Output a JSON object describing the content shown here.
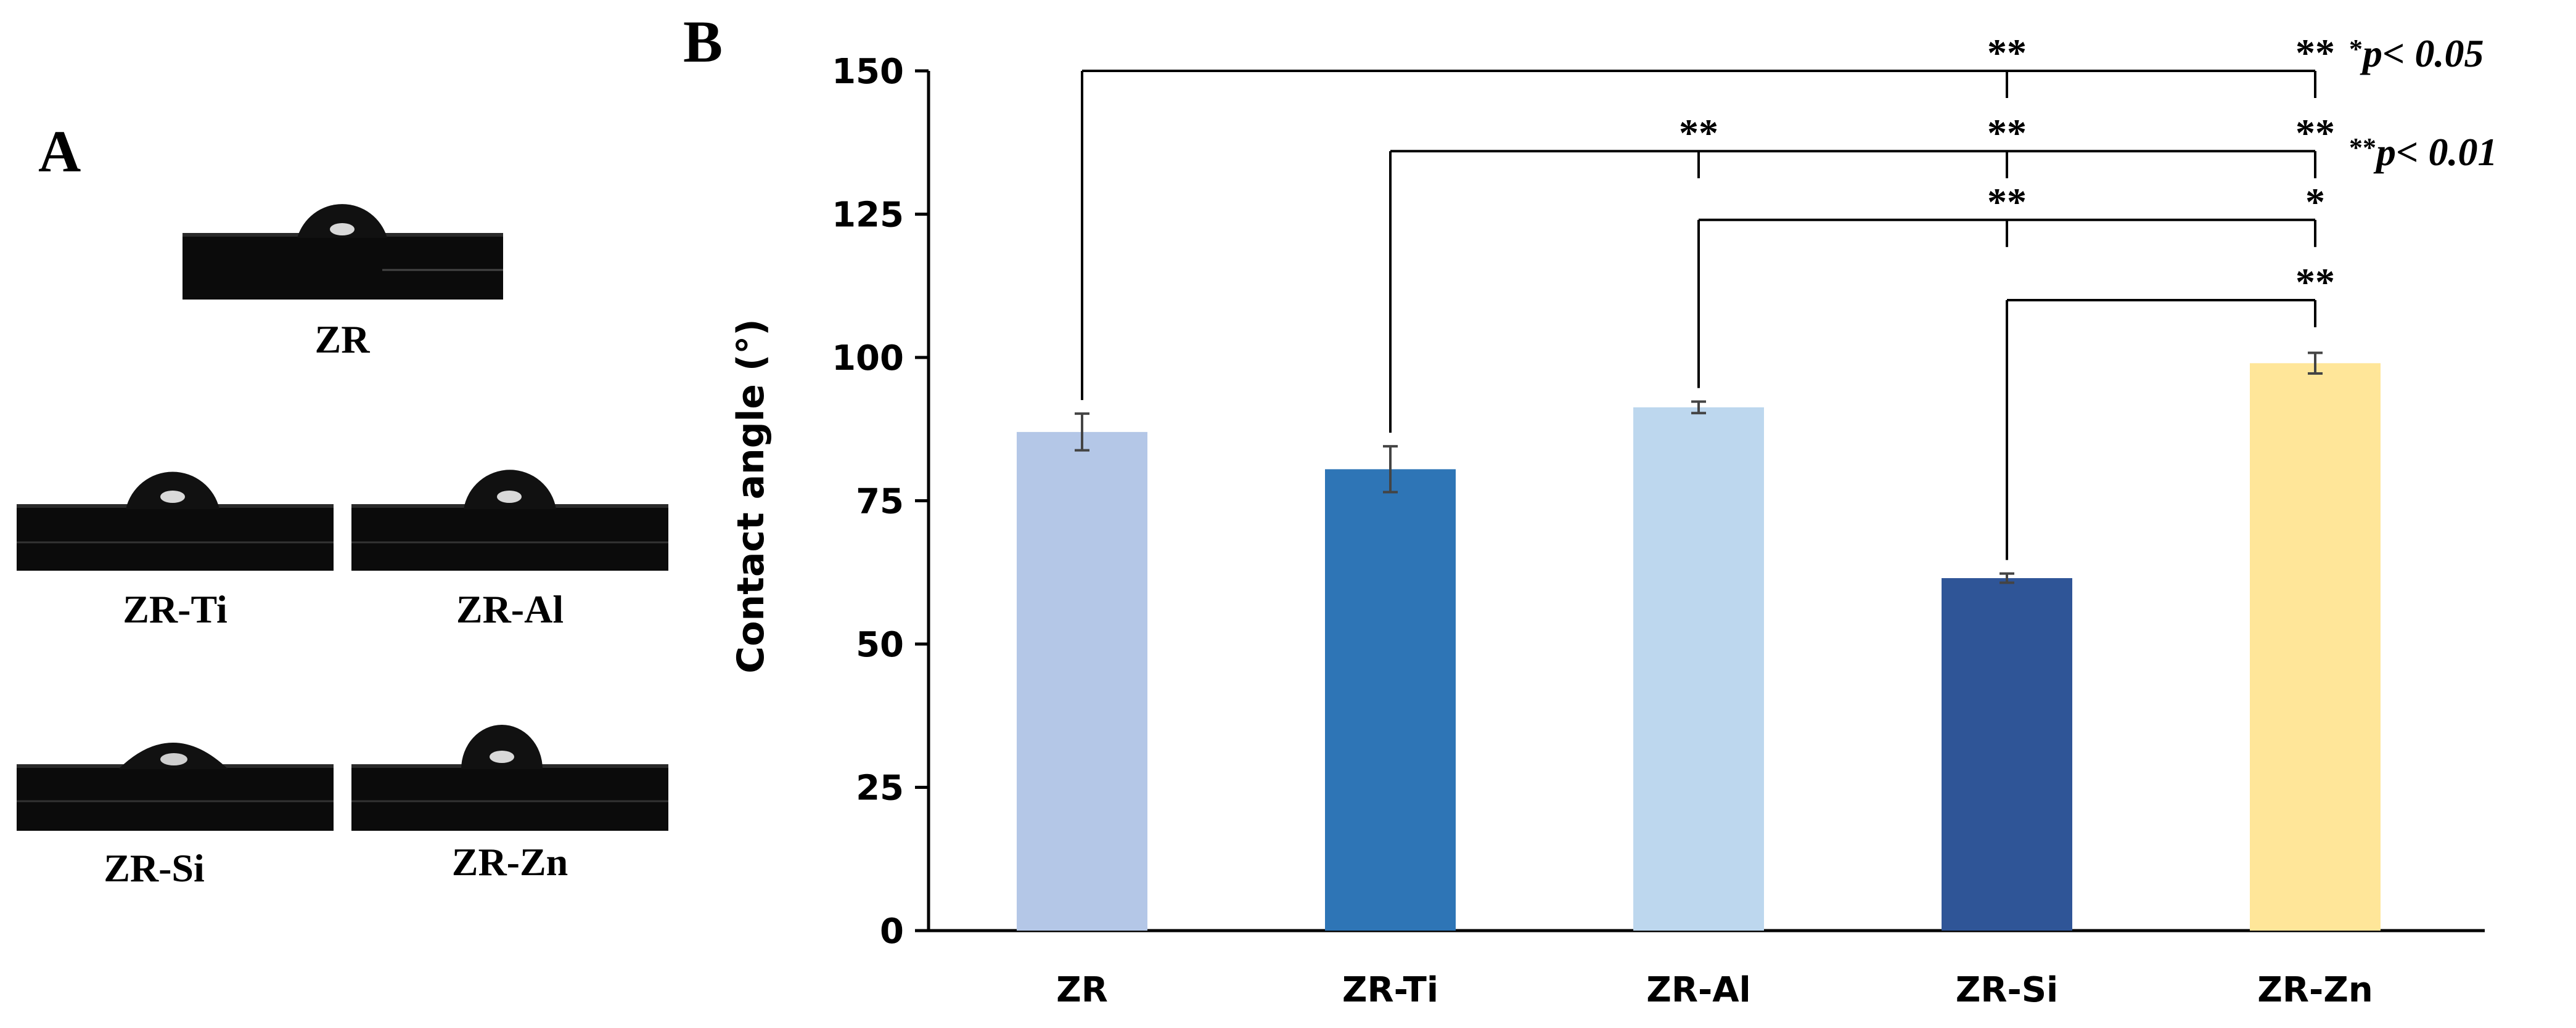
{
  "panel_a": {
    "letter": "A",
    "samples": [
      {
        "label": "ZR"
      },
      {
        "label": "ZR-Ti"
      },
      {
        "label": "ZR-Al"
      },
      {
        "label": "ZR-Si"
      },
      {
        "label": "ZR-Zn"
      }
    ]
  },
  "panel_b": {
    "letter": "B"
  },
  "chart_data": {
    "type": "bar",
    "title": "",
    "xlabel": "",
    "ylabel": "Contact angle (°)",
    "ylim": [
      0,
      150
    ],
    "yticks": [
      0,
      25,
      50,
      75,
      100,
      125,
      150
    ],
    "grid": false,
    "categories": [
      "ZR",
      "ZR-Ti",
      "ZR-Al",
      "ZR-Si",
      "ZR-Zn"
    ],
    "series": [
      {
        "values": [
          87,
          80.5,
          91.3,
          61.5,
          99
        ],
        "errors": [
          3.2,
          4.0,
          1.0,
          0.8,
          1.8
        ],
        "colors": [
          "#b4c7e7",
          "#2e75b6",
          "#bdd7ee",
          "#2f5597",
          "#ffe699"
        ]
      }
    ],
    "significance": {
      "brackets": [
        {
          "from": 0,
          "drops": [
            3,
            4
          ],
          "level": 150,
          "marks": [
            "**",
            "**"
          ]
        },
        {
          "from": 1,
          "drops": [
            2,
            3,
            4
          ],
          "level": 136,
          "marks": [
            "**",
            "**",
            "**"
          ]
        },
        {
          "from": 2,
          "drops": [
            3,
            4
          ],
          "level": 124,
          "marks": [
            "**",
            "*"
          ]
        },
        {
          "from": 3,
          "drops": [
            4
          ],
          "level": 110,
          "marks": [
            "**"
          ]
        }
      ],
      "legend": [
        {
          "stars": "*",
          "text": "p< 0.05"
        },
        {
          "stars": "**",
          "text": "p< 0.01"
        }
      ]
    }
  }
}
